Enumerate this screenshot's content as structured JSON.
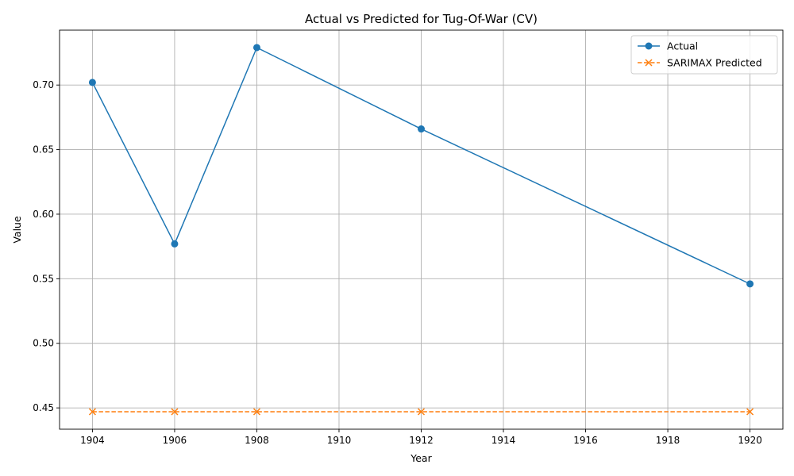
{
  "chart_data": {
    "type": "line",
    "title": "Actual vs Predicted for Tug-Of-War (CV)",
    "xlabel": "Year",
    "ylabel": "Value",
    "x": [
      1904,
      1906,
      1908,
      1912,
      1920
    ],
    "xlim": [
      1903.2,
      1920.8
    ],
    "ylim": [
      0.4335,
      0.7425
    ],
    "xticks": [
      1904,
      1906,
      1908,
      1910,
      1912,
      1914,
      1916,
      1918,
      1920
    ],
    "yticks": [
      0.45,
      0.5,
      0.55,
      0.6,
      0.65,
      0.7
    ],
    "ytick_labels": [
      "0.45",
      "0.50",
      "0.55",
      "0.60",
      "0.65",
      "0.70"
    ],
    "grid": true,
    "legend_position": "upper right",
    "series": [
      {
        "name": "Actual",
        "values": [
          0.702,
          0.577,
          0.729,
          0.666,
          0.546
        ],
        "color": "#1f77b4",
        "line_style": "solid",
        "marker": "circle"
      },
      {
        "name": "SARIMAX Predicted",
        "values": [
          0.447,
          0.447,
          0.447,
          0.447,
          0.447
        ],
        "color": "#ff7f0e",
        "line_style": "dashed",
        "marker": "x"
      }
    ]
  }
}
